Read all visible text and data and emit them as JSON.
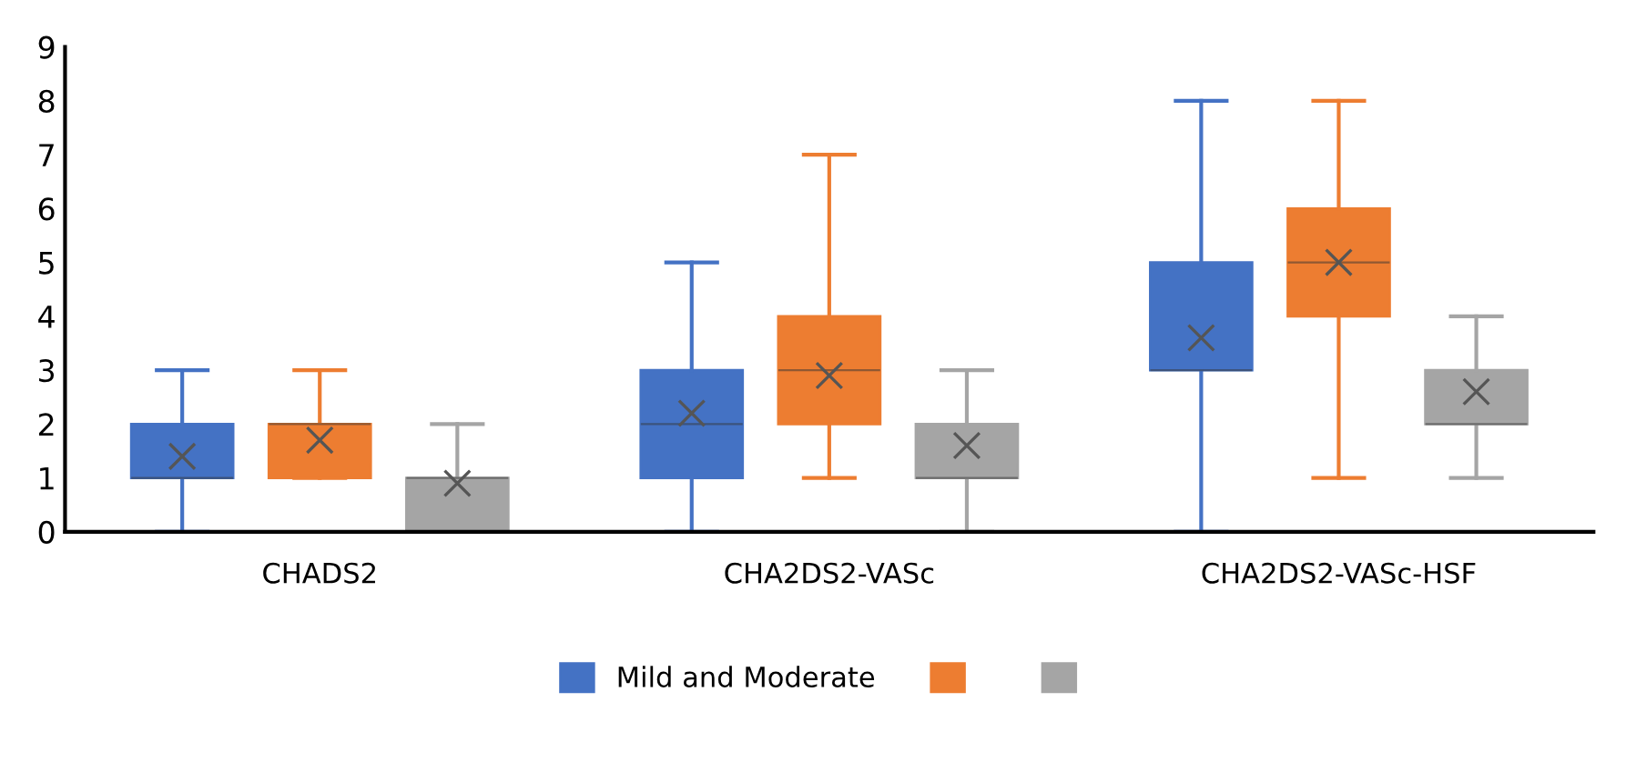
{
  "chart_data": {
    "type": "box",
    "categories": [
      "CHADS2",
      "CHA2DS2-VASc",
      "CHA2DS2-VASc-HSF"
    ],
    "ylim": [
      0,
      9
    ],
    "yticks": [
      0,
      1,
      2,
      3,
      4,
      5,
      6,
      7,
      8,
      9
    ],
    "grid": false,
    "legend": "bottom",
    "series": [
      {
        "name": "Mild and Moderate",
        "color": "#4472c4",
        "boxes": [
          {
            "low": 0,
            "q1": 1,
            "median": 1,
            "q3": 2,
            "high": 3,
            "mean": 1.4
          },
          {
            "low": 0,
            "q1": 1,
            "median": 2,
            "q3": 3,
            "high": 5,
            "mean": 2.2
          },
          {
            "low": 0,
            "q1": 3,
            "median": 3,
            "q3": 5,
            "high": 8,
            "mean": 3.6
          }
        ]
      },
      {
        "color": "#ed7d31",
        "boxes": [
          {
            "low": 1,
            "q1": 1,
            "median": 2,
            "q3": 2,
            "high": 3,
            "mean": 1.7
          },
          {
            "low": 1,
            "q1": 2,
            "median": 3,
            "q3": 4,
            "high": 7,
            "mean": 2.9
          },
          {
            "low": 1,
            "q1": 4,
            "median": 5,
            "q3": 6,
            "high": 8,
            "mean": 5.0
          }
        ]
      },
      {
        "color": "#a5a5a5",
        "boxes": [
          {
            "low": 0,
            "q1": 0,
            "median": 1,
            "q3": 1,
            "high": 2,
            "mean": 0.9
          },
          {
            "low": 0,
            "q1": 1,
            "median": 1,
            "q3": 2,
            "high": 3,
            "mean": 1.6
          },
          {
            "low": 1,
            "q1": 2,
            "median": 2,
            "q3": 3,
            "high": 4,
            "mean": 2.6
          }
        ]
      }
    ]
  }
}
